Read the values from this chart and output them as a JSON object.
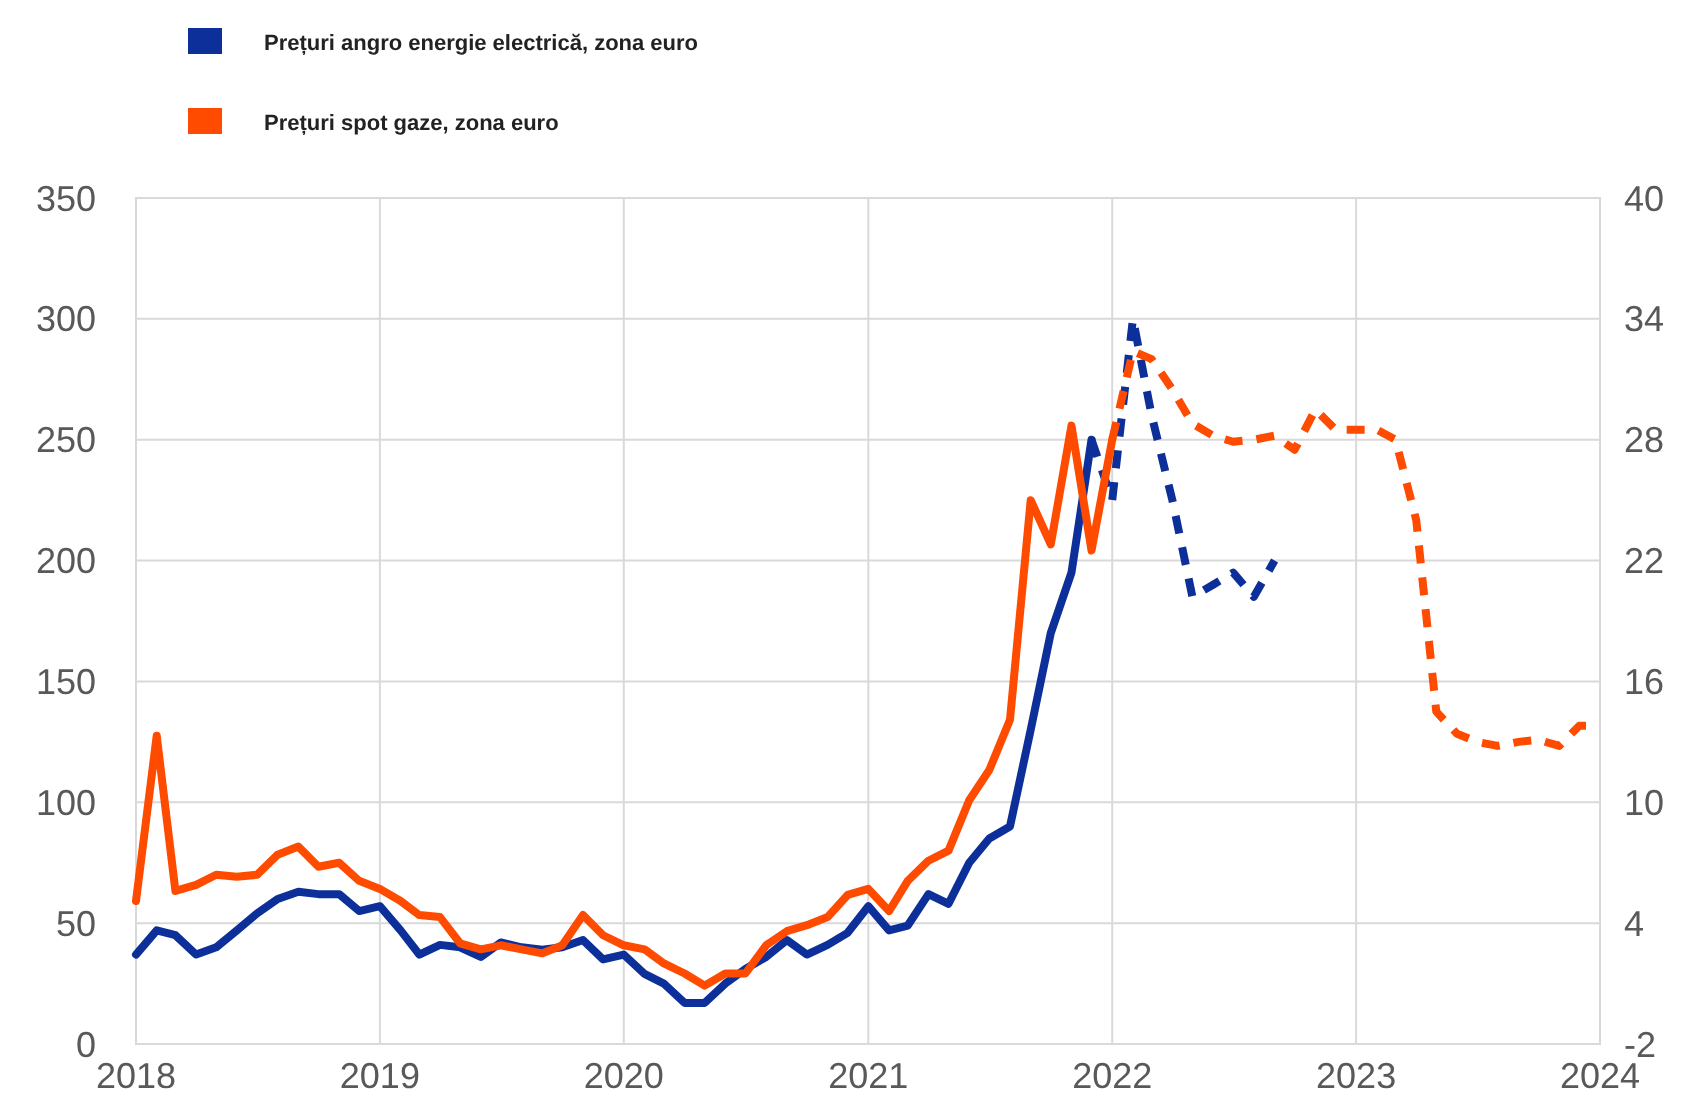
{
  "chart_data": {
    "type": "line",
    "legend": "top left",
    "grid": true,
    "marker": "none",
    "xlim": [
      "2018-01",
      "2024-01"
    ],
    "xticks": [
      "2018",
      "2019",
      "2020",
      "2021",
      "2022",
      "2023",
      "2024"
    ],
    "ylim": [
      0,
      350
    ],
    "yticks": [
      0,
      50,
      100,
      150,
      200,
      250,
      300,
      350
    ],
    "y2lim": [
      -2,
      40
    ],
    "y2ticks": [
      -2,
      4,
      10,
      16,
      22,
      28,
      34,
      40
    ],
    "series": [
      {
        "name": "Prețuri angro energie electrică, zona euro",
        "color": "#0d2f9a",
        "line_style": "solid",
        "x": [
          "2018-01",
          "2018-02",
          "2018-03",
          "2018-04",
          "2018-05",
          "2018-06",
          "2018-07",
          "2018-08",
          "2018-09",
          "2018-10",
          "2018-11",
          "2018-12",
          "2019-01",
          "2019-02",
          "2019-03",
          "2019-04",
          "2019-05",
          "2019-06",
          "2019-07",
          "2019-08",
          "2019-09",
          "2019-10",
          "2019-11",
          "2019-12",
          "2020-01",
          "2020-02",
          "2020-03",
          "2020-04",
          "2020-05",
          "2020-06",
          "2020-07",
          "2020-08",
          "2020-09",
          "2020-10",
          "2020-11",
          "2020-12",
          "2021-01",
          "2021-02",
          "2021-03",
          "2021-04",
          "2021-05",
          "2021-06",
          "2021-07",
          "2021-08",
          "2021-09",
          "2021-10",
          "2021-11",
          "2021-12"
        ],
        "values": [
          37,
          47,
          45,
          37,
          40,
          47,
          54,
          60,
          63,
          62,
          62,
          55,
          57,
          47,
          37,
          41,
          40,
          36,
          42,
          40,
          39,
          40,
          43,
          35,
          37,
          29,
          25,
          17,
          17,
          25,
          31,
          36,
          43,
          37,
          41,
          46,
          57,
          47,
          49,
          62,
          58,
          75,
          85,
          90,
          130,
          170,
          195,
          250
        ]
      },
      {
        "color": "#0d2f9a",
        "line_style": "dashed",
        "x": [
          "2021-12",
          "2022-01",
          "2022-02",
          "2022-03",
          "2022-04",
          "2022-05",
          "2022-06",
          "2022-07",
          "2022-08",
          "2022-09"
        ],
        "values": [
          250,
          225,
          300,
          260,
          225,
          185,
          190,
          195,
          185,
          200
        ]
      },
      {
        "name": "Prețuri spot gaze, zona euro",
        "color": "#ff4b00",
        "line_style": "solid",
        "axis": "y2",
        "x": [
          "2018-01",
          "2018-02",
          "2018-03",
          "2018-04",
          "2018-05",
          "2018-06",
          "2018-07",
          "2018-08",
          "2018-09",
          "2018-10",
          "2018-11",
          "2018-12",
          "2019-01",
          "2019-02",
          "2019-03",
          "2019-04",
          "2019-05",
          "2019-06",
          "2019-07",
          "2019-08",
          "2019-09",
          "2019-10",
          "2019-11",
          "2019-12",
          "2020-01",
          "2020-02",
          "2020-03",
          "2020-04",
          "2020-05",
          "2020-06",
          "2020-07",
          "2020-08",
          "2020-09",
          "2020-10",
          "2020-11",
          "2020-12",
          "2021-01",
          "2021-02",
          "2021-03",
          "2021-04",
          "2021-05",
          "2021-06",
          "2021-07",
          "2021-08",
          "2021-09",
          "2021-10",
          "2021-11",
          "2021-12",
          "2022-01"
        ],
        "values": [
          5.1,
          13.3,
          5.6,
          5.9,
          6.4,
          6.3,
          6.4,
          7.4,
          7.8,
          6.8,
          7.0,
          6.1,
          5.7,
          5.1,
          4.4,
          4.3,
          3.0,
          2.7,
          2.9,
          2.7,
          2.5,
          2.9,
          4.4,
          3.4,
          2.9,
          2.7,
          2.0,
          1.5,
          0.9,
          1.5,
          1.5,
          2.9,
          3.6,
          3.9,
          4.3,
          5.4,
          5.7,
          4.6,
          6.1,
          7.1,
          7.6,
          10.1,
          11.6,
          14.1,
          25,
          22.8,
          28.7,
          22.5,
          28
        ]
      },
      {
        "color": "#ff4b00",
        "line_style": "dashed",
        "axis": "y2",
        "x": [
          "2022-01",
          "2022-02",
          "2022-03",
          "2022-04",
          "2022-05",
          "2022-06",
          "2022-07",
          "2022-08",
          "2022-09",
          "2022-10",
          "2022-11",
          "2022-12",
          "2023-01",
          "2023-02",
          "2023-03",
          "2023-04",
          "2023-05",
          "2023-06",
          "2023-07",
          "2023-08",
          "2023-09",
          "2023-10",
          "2023-11",
          "2023-12",
          "2024-01"
        ],
        "values": [
          28,
          32.4,
          32,
          30.5,
          28.8,
          28.2,
          27.9,
          28,
          28.2,
          27.5,
          29.5,
          28.5,
          28.5,
          28.5,
          28,
          24,
          14.5,
          13.4,
          13,
          12.8,
          13,
          13.1,
          12.8,
          13.8,
          13.8
        ]
      }
    ]
  }
}
